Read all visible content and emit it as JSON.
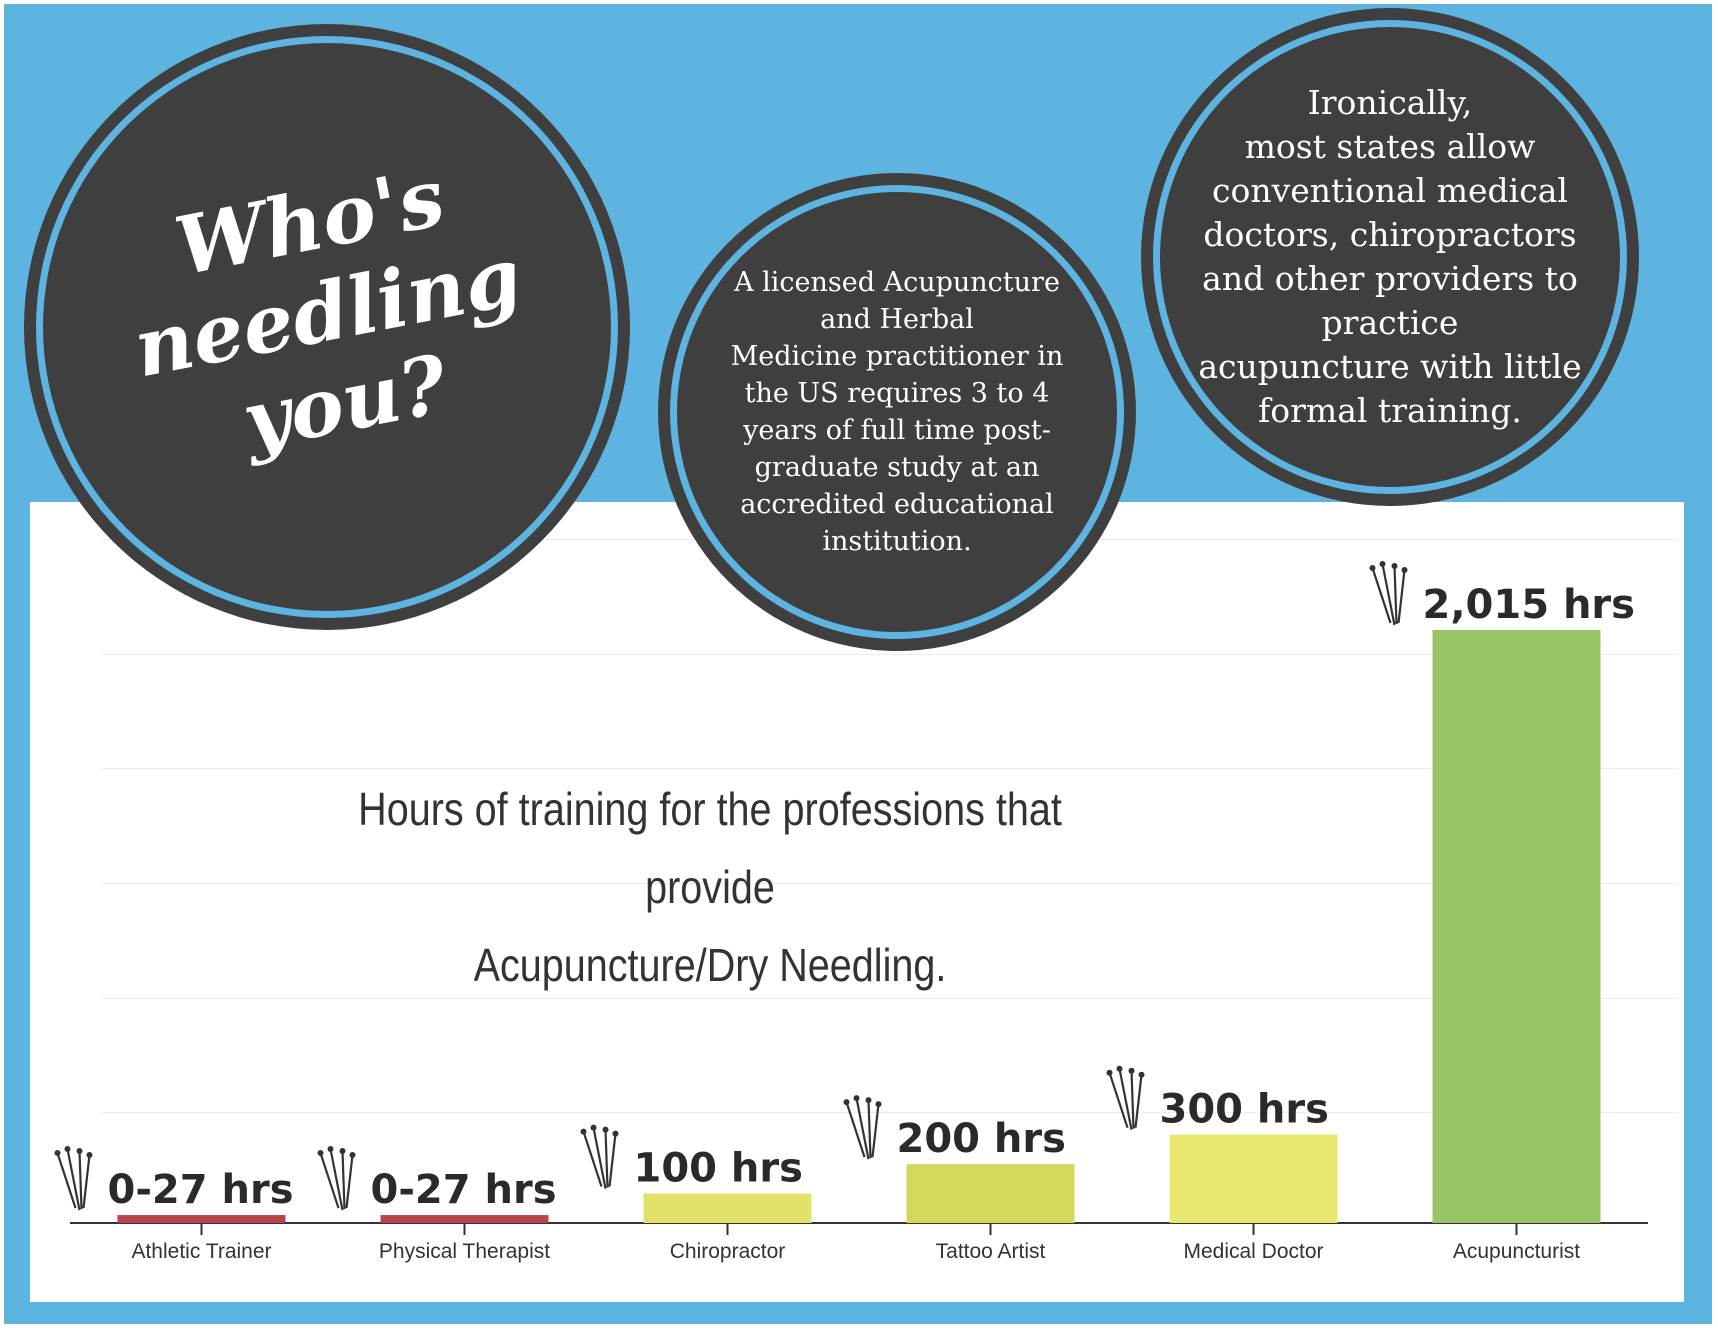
{
  "headline": "Who's\nneedling\nyou?",
  "circle_middle_text": "A licensed Acupuncture\nand Herbal\nMedicine practitioner in\nthe US requires 3 to 4\nyears of full time post-\ngraduate study at an\naccredited educational\ninstitution.",
  "circle_right_text": "Ironically,\nmost states allow\nconventional medical\ndoctors, chiropractors\nand other providers to\npractice\nacupuncture with little\nformal training.",
  "icons": {
    "needle": "acupuncture-needles-icon"
  },
  "colors": {
    "background": "#5db4e1",
    "circle": "#3f3f3f",
    "bar_red": "#b8444c",
    "bar_yellow": "#e2e26a",
    "bar_olive": "#d4d85a",
    "bar_lightyellow": "#e8e870",
    "bar_green": "#97c566"
  },
  "chart_data": {
    "type": "bar",
    "title": "Hours of training for the professions that provide\nAcupuncture/Dry Needling.",
    "xlabel": "",
    "ylabel": "",
    "ylim": [
      0,
      2015
    ],
    "grid": true,
    "categories": [
      "Athletic Trainer",
      "Physical Therapist",
      "Chiropractor",
      "Tattoo Artist",
      "Medical Doctor",
      "Acupuncturist"
    ],
    "values": [
      27,
      27,
      100,
      200,
      300,
      2015
    ],
    "data_labels": [
      "0-27 hrs",
      "0-27 hrs",
      "100 hrs",
      "200 hrs",
      "300 hrs",
      "2,015 hrs"
    ],
    "bar_colors": [
      "#b8444c",
      "#b8444c",
      "#e2e26a",
      "#d4d85a",
      "#e8e870",
      "#97c566"
    ]
  }
}
